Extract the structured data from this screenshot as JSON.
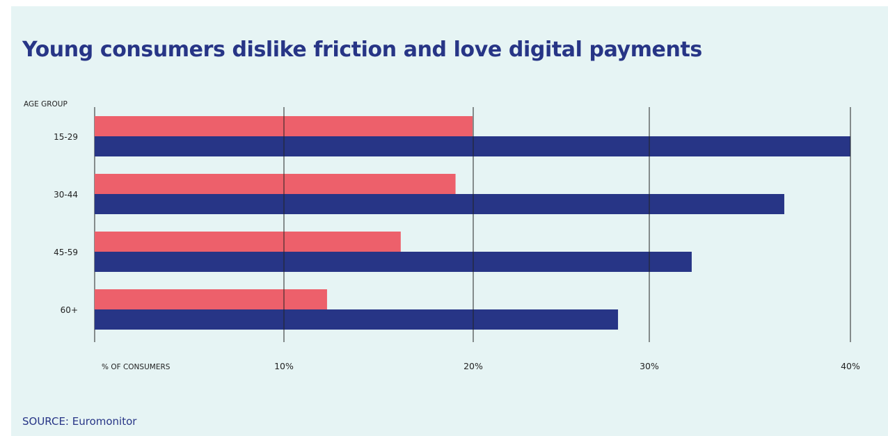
{
  "title": "Young consumers dislike friction and love digital payments",
  "source": "SOURCE: Euromonitor",
  "colors": {
    "background": "#e6f4f4",
    "title": "#273586",
    "series_navy": "#273586",
    "series_coral": "#ed606b"
  },
  "chart_data": {
    "type": "bar",
    "orientation": "horizontal",
    "title": "Young consumers dislike friction and love digital payments",
    "ylabel": "AGE GROUP",
    "xlabel": "% OF CONSUMERS",
    "categories": [
      "15-29",
      "30-44",
      "45-59",
      "60+"
    ],
    "series": [
      {
        "color": "#ed606b",
        "values": [
          20,
          19.1,
          16.2,
          12.3
        ]
      },
      {
        "color": "#273586",
        "values": [
          40,
          36.5,
          31.6,
          27.7
        ]
      }
    ],
    "xticks": [
      10,
      20,
      30,
      40
    ],
    "xtick_labels": [
      "10%",
      "20%",
      "30%",
      "40%"
    ],
    "xlim": [
      0,
      40
    ],
    "grid": true,
    "legend": "none"
  }
}
